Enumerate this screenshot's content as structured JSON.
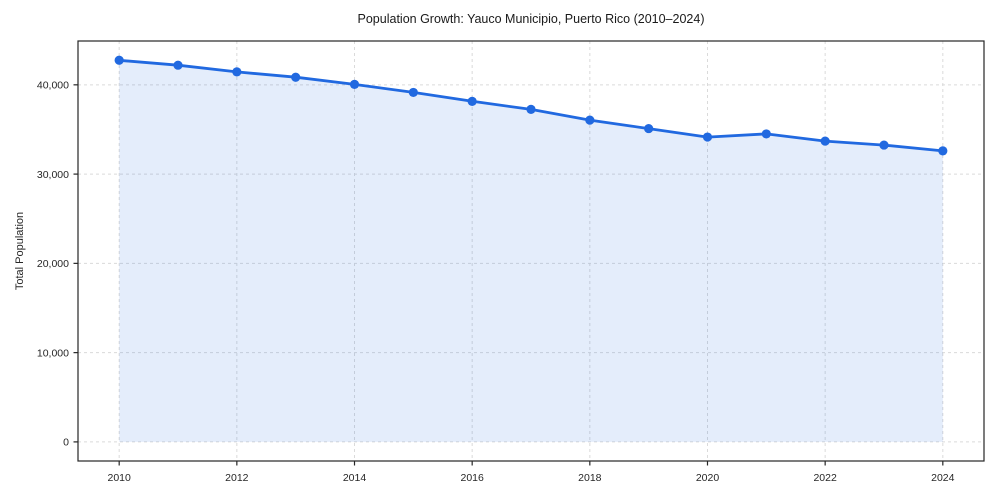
{
  "header": {
    "title": "Population Growth: Yauco Municipio, Puerto Rico (2010–2024)"
  },
  "chart_data": {
    "type": "line",
    "title": "Population Growth: Yauco Municipio, Puerto Rico (2010–2024)",
    "xlabel": "",
    "ylabel": "Total Population",
    "x": [
      2010,
      2011,
      2012,
      2013,
      2014,
      2015,
      2016,
      2017,
      2018,
      2019,
      2020,
      2021,
      2022,
      2023,
      2024
    ],
    "series": [
      {
        "name": "Total Population",
        "values": [
          42750,
          42200,
          41450,
          40850,
          40050,
          39150,
          38150,
          37250,
          36050,
          35100,
          34150,
          34500,
          33700,
          33250,
          32600
        ]
      }
    ],
    "x_ticks": [
      2010,
      2012,
      2014,
      2016,
      2018,
      2020,
      2022,
      2024
    ],
    "x_tick_labels": [
      "2010",
      "2012",
      "2014",
      "2016",
      "2018",
      "2020",
      "2022",
      "2024"
    ],
    "y_ticks": [
      0,
      10000,
      20000,
      30000,
      40000
    ],
    "y_tick_labels": [
      "0",
      "10,000",
      "20,000",
      "30,000",
      "40,000"
    ],
    "xlim": [
      2009.3,
      2024.7
    ],
    "ylim": [
      -2140,
      44910
    ],
    "grid": true,
    "grid_style": "dashed",
    "legend": false,
    "marker": "circle",
    "fill_to": 0,
    "colors": {
      "line": "#2169e0",
      "marker": "#2169e0",
      "fill": "rgba(33,105,224,0.12)",
      "grid": "#dadada",
      "spine": "#262626",
      "tick_label": "#262626",
      "title": "#1a1a1a",
      "background": "#ffffff"
    }
  }
}
